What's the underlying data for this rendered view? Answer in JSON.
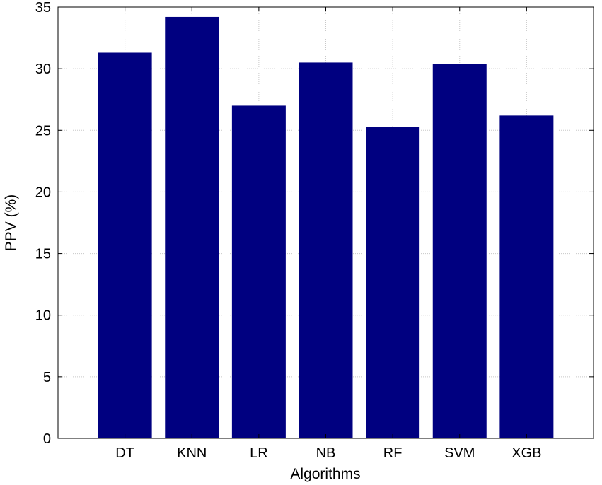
{
  "chart_data": {
    "type": "bar",
    "categories": [
      "DT",
      "KNN",
      "LR",
      "NB",
      "RF",
      "SVM",
      "XGB"
    ],
    "values": [
      31.3,
      34.2,
      27.0,
      30.5,
      25.3,
      30.4,
      26.2
    ],
    "xlabel": "Algorithms",
    "ylabel": "PPV (%)",
    "ylim": [
      0,
      35
    ],
    "yticks": [
      0,
      5,
      10,
      15,
      20,
      25,
      30,
      35
    ],
    "grid": true,
    "bar_color": "#000080",
    "grid_color": "#c8c8c8"
  }
}
